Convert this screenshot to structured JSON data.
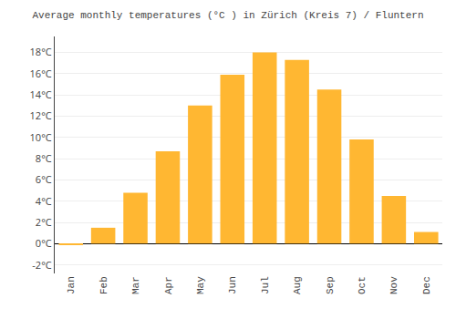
{
  "chart_data": {
    "type": "bar",
    "title": "Average monthly temperatures (°C ) in Zürich (Kreis 7) / Fluntern",
    "categories": [
      "Jan",
      "Feb",
      "Mar",
      "Apr",
      "May",
      "Jun",
      "Jul",
      "Aug",
      "Sep",
      "Oct",
      "Nov",
      "Dec"
    ],
    "values": [
      -0.1,
      1.5,
      4.8,
      8.7,
      13.0,
      15.9,
      18.0,
      17.3,
      14.5,
      9.8,
      4.5,
      1.1
    ],
    "color": "#FFB732",
    "ylim": [
      -2.8,
      19.5
    ],
    "yticks": [
      {
        "value": -2,
        "label": "-2°C"
      },
      {
        "value": 0,
        "label": "0°C"
      },
      {
        "value": 2,
        "label": "2°C"
      },
      {
        "value": 4,
        "label": "4°C"
      },
      {
        "value": 6,
        "label": "6°C"
      },
      {
        "value": 8,
        "label": "8°C"
      },
      {
        "value": 10,
        "label": "10°C"
      },
      {
        "value": 12,
        "label": "12°C"
      },
      {
        "value": 14,
        "label": "14°C"
      },
      {
        "value": 16,
        "label": "16°C"
      },
      {
        "value": 18,
        "label": "18°C"
      }
    ],
    "grid": true
  }
}
